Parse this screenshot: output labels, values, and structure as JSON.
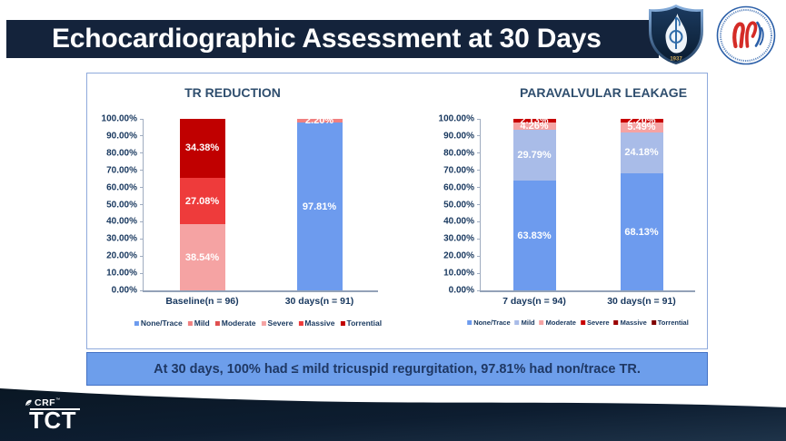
{
  "slide": {
    "title": "Echocardiographic Assessment at 30 Days",
    "banner_text": "At 30 days, 100% had ≤ mild tricuspid regurgitation, 97.81% had non/trace TR.",
    "footer": {
      "crf_label": "CRF",
      "crf_tm": "™",
      "tct_label": "TCT"
    },
    "logos": {
      "shield_year": "1937"
    }
  },
  "colors": {
    "navy": "#14233B",
    "banner_bg": "#6D9EEB",
    "panel_border": "#8FAADC",
    "text_navy": "#17375E"
  },
  "chart_data": [
    {
      "type": "bar",
      "stacked": true,
      "title": "TR REDUCTION",
      "categories": [
        "Baseline(n = 96)",
        "30 days(n = 91)"
      ],
      "series": [
        {
          "name": "None/Trace",
          "color": "#6D9BEE",
          "values": [
            null,
            97.81
          ]
        },
        {
          "name": "Mild",
          "color": "#F08080",
          "values": [
            null,
            2.2
          ]
        },
        {
          "name": "Moderate",
          "color": "#E04F4F",
          "values": [
            null,
            null
          ]
        },
        {
          "name": "Severe",
          "color": "#F5A3A3",
          "values": [
            38.54,
            null
          ]
        },
        {
          "name": "Massive",
          "color": "#EE3B3B",
          "values": [
            27.08,
            null
          ]
        },
        {
          "name": "Torrential",
          "color": "#C00000",
          "values": [
            34.38,
            null
          ]
        }
      ],
      "ylim": [
        0,
        100
      ],
      "ytick_labels": [
        "0.00%",
        "10.00%",
        "20.00%",
        "30.00%",
        "40.00%",
        "50.00%",
        "60.00%",
        "70.00%",
        "80.00%",
        "90.00%",
        "100.00%"
      ],
      "legend_position": "bottom",
      "gridlines": false
    },
    {
      "type": "bar",
      "stacked": true,
      "title": "PARAVALVULAR LEAKAGE",
      "categories": [
        "7 days(n = 94)",
        "30 days(n = 91)"
      ],
      "series": [
        {
          "name": "None/Trace",
          "color": "#6D9BEE",
          "values": [
            63.83,
            68.13
          ]
        },
        {
          "name": "Mild",
          "color": "#A9BCE8",
          "values": [
            29.79,
            24.18
          ]
        },
        {
          "name": "Moderate",
          "color": "#F5A3A3",
          "values": [
            4.26,
            5.49
          ]
        },
        {
          "name": "Severe",
          "color": "#C80000",
          "values": [
            2.13,
            2.2
          ]
        },
        {
          "name": "Massive",
          "color": "#9B0000",
          "values": [
            null,
            null
          ]
        },
        {
          "name": "Torrential",
          "color": "#7F0000",
          "values": [
            null,
            null
          ]
        }
      ],
      "ylim": [
        0,
        100
      ],
      "ytick_labels": [
        "0.00%",
        "10.00%",
        "20.00%",
        "30.00%",
        "40.00%",
        "50.00%",
        "60.00%",
        "70.00%",
        "80.00%",
        "90.00%",
        "100.00%"
      ],
      "legend_position": "bottom",
      "gridlines": false
    }
  ]
}
